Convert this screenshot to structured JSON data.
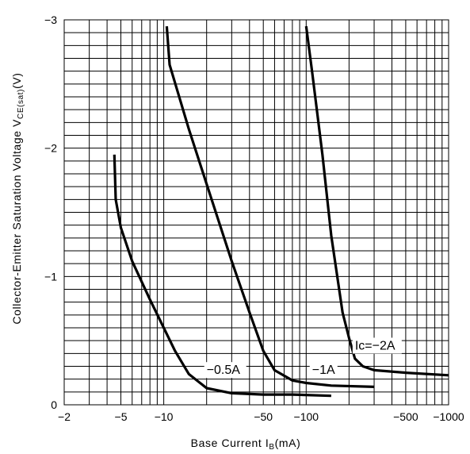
{
  "chart_data": {
    "type": "line",
    "xlabel": "Base Current I_B(mA)",
    "xlabel_main": "Base Current I",
    "xlabel_sub": "B",
    "xlabel_unit": "(mA)",
    "ylabel_main": "Collector-Emitter Saturation Voltage V",
    "ylabel_sub": "CE(sat)",
    "ylabel_unit": "(V)",
    "x_scale": "log",
    "xlim": [
      2,
      1000
    ],
    "ylim": [
      0,
      -3
    ],
    "grid": true,
    "x_ticks": [
      {
        "value": 2,
        "label": "−2"
      },
      {
        "value": 5,
        "label": "−5"
      },
      {
        "value": 10,
        "label": "−10"
      },
      {
        "value": 50,
        "label": "−50"
      },
      {
        "value": 100,
        "label": "−100"
      },
      {
        "value": 500,
        "label": "−500"
      },
      {
        "value": 1000,
        "label": "−1000"
      }
    ],
    "y_ticks": [
      {
        "value": 0,
        "label": "0"
      },
      {
        "value": -1,
        "label": "−1"
      },
      {
        "value": -2,
        "label": "−2"
      },
      {
        "value": -3,
        "label": "−3"
      }
    ],
    "series": [
      {
        "name": "−0.5A",
        "x": [
          4.5,
          4.6,
          5,
          6,
          8,
          10,
          12,
          15,
          20,
          30,
          50,
          80,
          150
        ],
        "y": [
          -1.95,
          -1.6,
          -1.38,
          -1.12,
          -0.82,
          -0.6,
          -0.42,
          -0.24,
          -0.13,
          -0.09,
          -0.08,
          -0.08,
          -0.07
        ]
      },
      {
        "name": "−1A",
        "x": [
          10.5,
          11,
          15,
          20,
          30,
          40,
          50,
          60,
          80,
          100,
          150,
          300
        ],
        "y": [
          -2.95,
          -2.65,
          -2.15,
          -1.72,
          -1.12,
          -0.72,
          -0.42,
          -0.27,
          -0.19,
          -0.17,
          -0.15,
          -0.14
        ]
      },
      {
        "name": "Ic=−2A",
        "x": [
          100,
          110,
          130,
          150,
          180,
          200,
          220,
          250,
          300,
          500,
          1000
        ],
        "y": [
          -2.95,
          -2.6,
          -1.95,
          -1.32,
          -0.72,
          -0.52,
          -0.36,
          -0.3,
          -0.27,
          -0.25,
          -0.23
        ]
      }
    ],
    "annotations": [
      {
        "text": "−0.5A",
        "series": "−0.5A"
      },
      {
        "text": "−1A",
        "series": "−1A"
      },
      {
        "text": "Ic=−2A",
        "series": "Ic=−2A"
      }
    ]
  }
}
